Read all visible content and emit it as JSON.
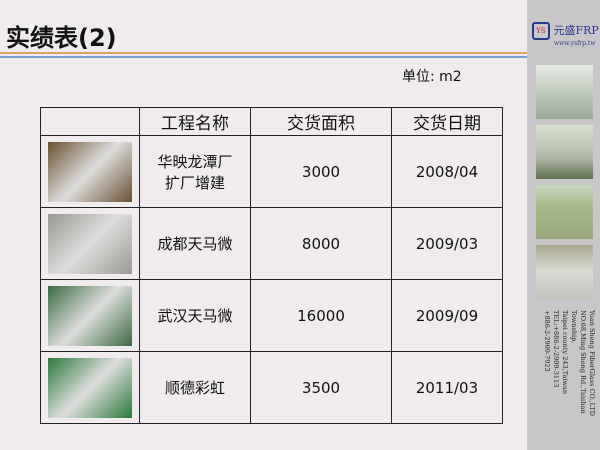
{
  "title": "实绩表(2)",
  "unit": "单位: m2",
  "table": {
    "headers": [
      "",
      "工程名称",
      "交货面积",
      "交货日期"
    ],
    "rows": [
      {
        "name": "华映龙潭厂\n扩厂增建",
        "area": "3000",
        "date": "2008/04",
        "photo_color": "#6a5030"
      },
      {
        "name": "成都天马微",
        "area": "8000",
        "date": "2009/03",
        "photo_color": "#9a9890"
      },
      {
        "name": "武汉天马微",
        "area": "16000",
        "date": "2009/09",
        "photo_color": "#3a6a40"
      },
      {
        "name": "顺德彩虹",
        "area": "3500",
        "date": "2011/03",
        "photo_color": "#2a7a3a"
      }
    ]
  },
  "sidebar": {
    "logo_text": "元盛FRP",
    "logo_url": "www.ysfrp.tw",
    "logo_badge": "YS",
    "address": [
      "Yuan Sheng FiberGlass CO.,LTD",
      "NO.68,Ming Sheng Rd.,Taishan Township,",
      "Taipei county 243,Taiwan",
      "TEL:+886-2-2909-3113",
      "+886-2-2909-7923"
    ]
  }
}
